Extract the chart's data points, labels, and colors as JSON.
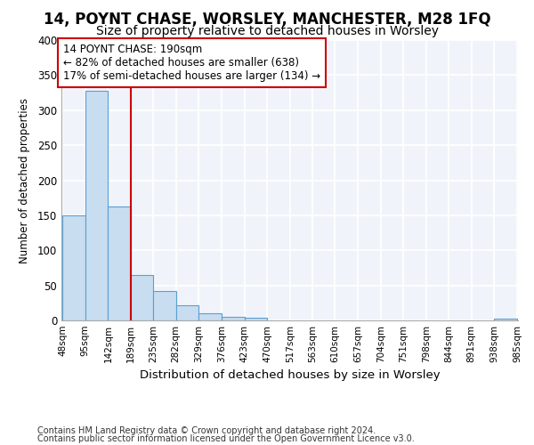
{
  "title1": "14, POYNT CHASE, WORSLEY, MANCHESTER, M28 1FQ",
  "title2": "Size of property relative to detached houses in Worsley",
  "xlabel": "Distribution of detached houses by size in Worsley",
  "ylabel": "Number of detached properties",
  "footer1": "Contains HM Land Registry data © Crown copyright and database right 2024.",
  "footer2": "Contains public sector information licensed under the Open Government Licence v3.0.",
  "bin_edges": [
    48,
    95,
    142,
    189,
    235,
    282,
    329,
    376,
    423,
    470,
    517,
    563,
    610,
    657,
    704,
    751,
    798,
    844,
    891,
    938,
    985
  ],
  "bar_heights": [
    150,
    328,
    163,
    65,
    42,
    22,
    10,
    5,
    4,
    0,
    0,
    0,
    0,
    0,
    0,
    0,
    0,
    0,
    0,
    3
  ],
  "bar_color": "#c8ddf0",
  "bar_edge_color": "#5a9fd4",
  "property_line_x": 189,
  "property_line_color": "#cc0000",
  "annotation_line1": "14 POYNT CHASE: 190sqm",
  "annotation_line2": "← 82% of detached houses are smaller (638)",
  "annotation_line3": "17% of semi-detached houses are larger (134) →",
  "annotation_box_facecolor": "#ffffff",
  "annotation_box_edgecolor": "#cc0000",
  "ylim": [
    0,
    400
  ],
  "yticks": [
    0,
    50,
    100,
    150,
    200,
    250,
    300,
    350,
    400
  ],
  "fig_bg_color": "#ffffff",
  "plot_bg_color": "#f0f4fa",
  "grid_color": "#ffffff",
  "grid_linewidth": 1.2,
  "title1_fontsize": 12,
  "title2_fontsize": 10,
  "xlabel_fontsize": 9.5,
  "ylabel_fontsize": 8.5,
  "ytick_fontsize": 8.5,
  "xtick_fontsize": 7.5,
  "footer_fontsize": 7,
  "annotation_fontsize": 8.5
}
